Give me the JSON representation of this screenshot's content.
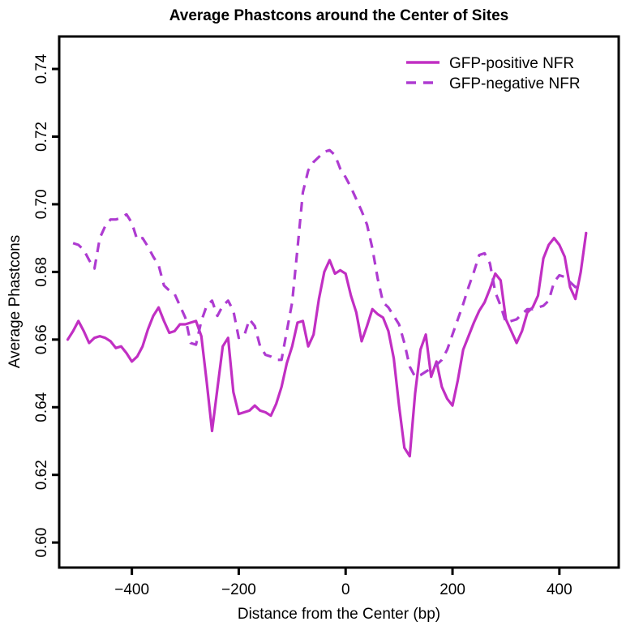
{
  "chart_data": {
    "type": "line",
    "title": "Average Phastcons around the Center of Sites",
    "xlabel": "Distance from the Center (bp)",
    "ylabel": "Average Phastcons",
    "xlim": [
      -536,
      511
    ],
    "ylim": [
      0.5926,
      0.7496
    ],
    "x_ticks": [
      -400,
      -200,
      0,
      200,
      400
    ],
    "x_tick_labels": [
      "−400",
      "−200",
      "0",
      "200",
      "400"
    ],
    "y_ticks": [
      0.6,
      0.62,
      0.64,
      0.66,
      0.68,
      0.7,
      0.72,
      0.74
    ],
    "y_tick_labels": [
      "0.60",
      "0.62",
      "0.64",
      "0.66",
      "0.68",
      "0.70",
      "0.72",
      "0.74"
    ],
    "grid": false,
    "legend_position": "top-right",
    "legend": [
      "GFP-positive NFR",
      "GFP-negative NFR"
    ],
    "series": [
      {
        "name": "GFP-positive NFR",
        "style": "solid",
        "color": "#c12fc3",
        "x": [
          -520,
          -510,
          -500,
          -490,
          -480,
          -470,
          -460,
          -450,
          -440,
          -430,
          -420,
          -410,
          -400,
          -390,
          -380,
          -370,
          -360,
          -350,
          -340,
          -330,
          -320,
          -310,
          -300,
          -290,
          -280,
          -270,
          -260,
          -250,
          -240,
          -230,
          -220,
          -210,
          -200,
          -190,
          -180,
          -170,
          -160,
          -150,
          -140,
          -130,
          -120,
          -110,
          -100,
          -90,
          -80,
          -70,
          -60,
          -50,
          -40,
          -30,
          -20,
          -10,
          0,
          10,
          20,
          30,
          40,
          50,
          60,
          70,
          80,
          90,
          100,
          110,
          120,
          130,
          140,
          150,
          160,
          170,
          180,
          190,
          200,
          210,
          220,
          230,
          240,
          250,
          260,
          270,
          280,
          290,
          300,
          310,
          320,
          330,
          340,
          350,
          360,
          370,
          380,
          390,
          400,
          410,
          420,
          430,
          440,
          450
        ],
        "values": [
          0.66,
          0.6625,
          0.6655,
          0.6625,
          0.659,
          0.6605,
          0.661,
          0.6605,
          0.6595,
          0.6575,
          0.658,
          0.656,
          0.6535,
          0.655,
          0.658,
          0.663,
          0.667,
          0.6695,
          0.6655,
          0.662,
          0.6625,
          0.6645,
          0.6645,
          0.665,
          0.6655,
          0.661,
          0.6475,
          0.633,
          0.6455,
          0.658,
          0.6605,
          0.6445,
          0.638,
          0.6385,
          0.639,
          0.6405,
          0.639,
          0.6385,
          0.6375,
          0.641,
          0.646,
          0.653,
          0.658,
          0.665,
          0.6655,
          0.658,
          0.6615,
          0.672,
          0.68,
          0.6835,
          0.6795,
          0.6805,
          0.6795,
          0.673,
          0.668,
          0.6595,
          0.664,
          0.669,
          0.6675,
          0.6665,
          0.6625,
          0.6545,
          0.6405,
          0.628,
          0.6255,
          0.644,
          0.657,
          0.6615,
          0.649,
          0.6535,
          0.646,
          0.6425,
          0.6405,
          0.648,
          0.657,
          0.661,
          0.665,
          0.6685,
          0.671,
          0.675,
          0.6795,
          0.6775,
          0.666,
          0.6625,
          0.659,
          0.6625,
          0.668,
          0.6695,
          0.673,
          0.684,
          0.688,
          0.69,
          0.688,
          0.6845,
          0.6755,
          0.672,
          0.68,
          0.6915
        ]
      },
      {
        "name": "GFP-negative NFR",
        "style": "dashed",
        "color": "#ae3bd1",
        "x": [
          -510,
          -500,
          -490,
          -480,
          -470,
          -460,
          -450,
          -440,
          -430,
          -420,
          -410,
          -400,
          -390,
          -380,
          -370,
          -360,
          -350,
          -340,
          -330,
          -320,
          -310,
          -300,
          -290,
          -280,
          -270,
          -260,
          -250,
          -240,
          -230,
          -220,
          -210,
          -200,
          -190,
          -180,
          -170,
          -160,
          -150,
          -140,
          -130,
          -120,
          -110,
          -100,
          -90,
          -80,
          -70,
          -60,
          -50,
          -40,
          -30,
          -20,
          -10,
          0,
          10,
          20,
          30,
          40,
          50,
          60,
          70,
          80,
          90,
          100,
          110,
          120,
          130,
          140,
          150,
          160,
          170,
          180,
          190,
          200,
          210,
          220,
          230,
          240,
          250,
          260,
          270,
          280,
          290,
          300,
          310,
          320,
          330,
          340,
          350,
          360,
          370,
          380,
          390,
          400,
          410,
          420,
          430,
          440
        ],
        "values": [
          0.6885,
          0.688,
          0.6865,
          0.6835,
          0.681,
          0.69,
          0.6935,
          0.6955,
          0.6955,
          0.696,
          0.697,
          0.6945,
          0.6895,
          0.69,
          0.6875,
          0.6845,
          0.682,
          0.676,
          0.6745,
          0.6735,
          0.67,
          0.6665,
          0.659,
          0.6585,
          0.6655,
          0.67,
          0.6715,
          0.667,
          0.67,
          0.6715,
          0.6685,
          0.6605,
          0.661,
          0.666,
          0.664,
          0.658,
          0.6555,
          0.655,
          0.654,
          0.654,
          0.6625,
          0.671,
          0.687,
          0.7035,
          0.71,
          0.7125,
          0.714,
          0.7155,
          0.716,
          0.7145,
          0.7105,
          0.708,
          0.705,
          0.7015,
          0.698,
          0.694,
          0.687,
          0.678,
          0.671,
          0.6695,
          0.667,
          0.6645,
          0.659,
          0.652,
          0.649,
          0.6495,
          0.6505,
          0.6515,
          0.6525,
          0.654,
          0.657,
          0.6615,
          0.666,
          0.6705,
          0.6755,
          0.68,
          0.685,
          0.6855,
          0.6825,
          0.674,
          0.67,
          0.665,
          0.6655,
          0.666,
          0.6675,
          0.669,
          0.669,
          0.6695,
          0.67,
          0.6715,
          0.677,
          0.679,
          0.6785,
          0.677,
          0.6755,
          0.676
        ]
      }
    ]
  }
}
